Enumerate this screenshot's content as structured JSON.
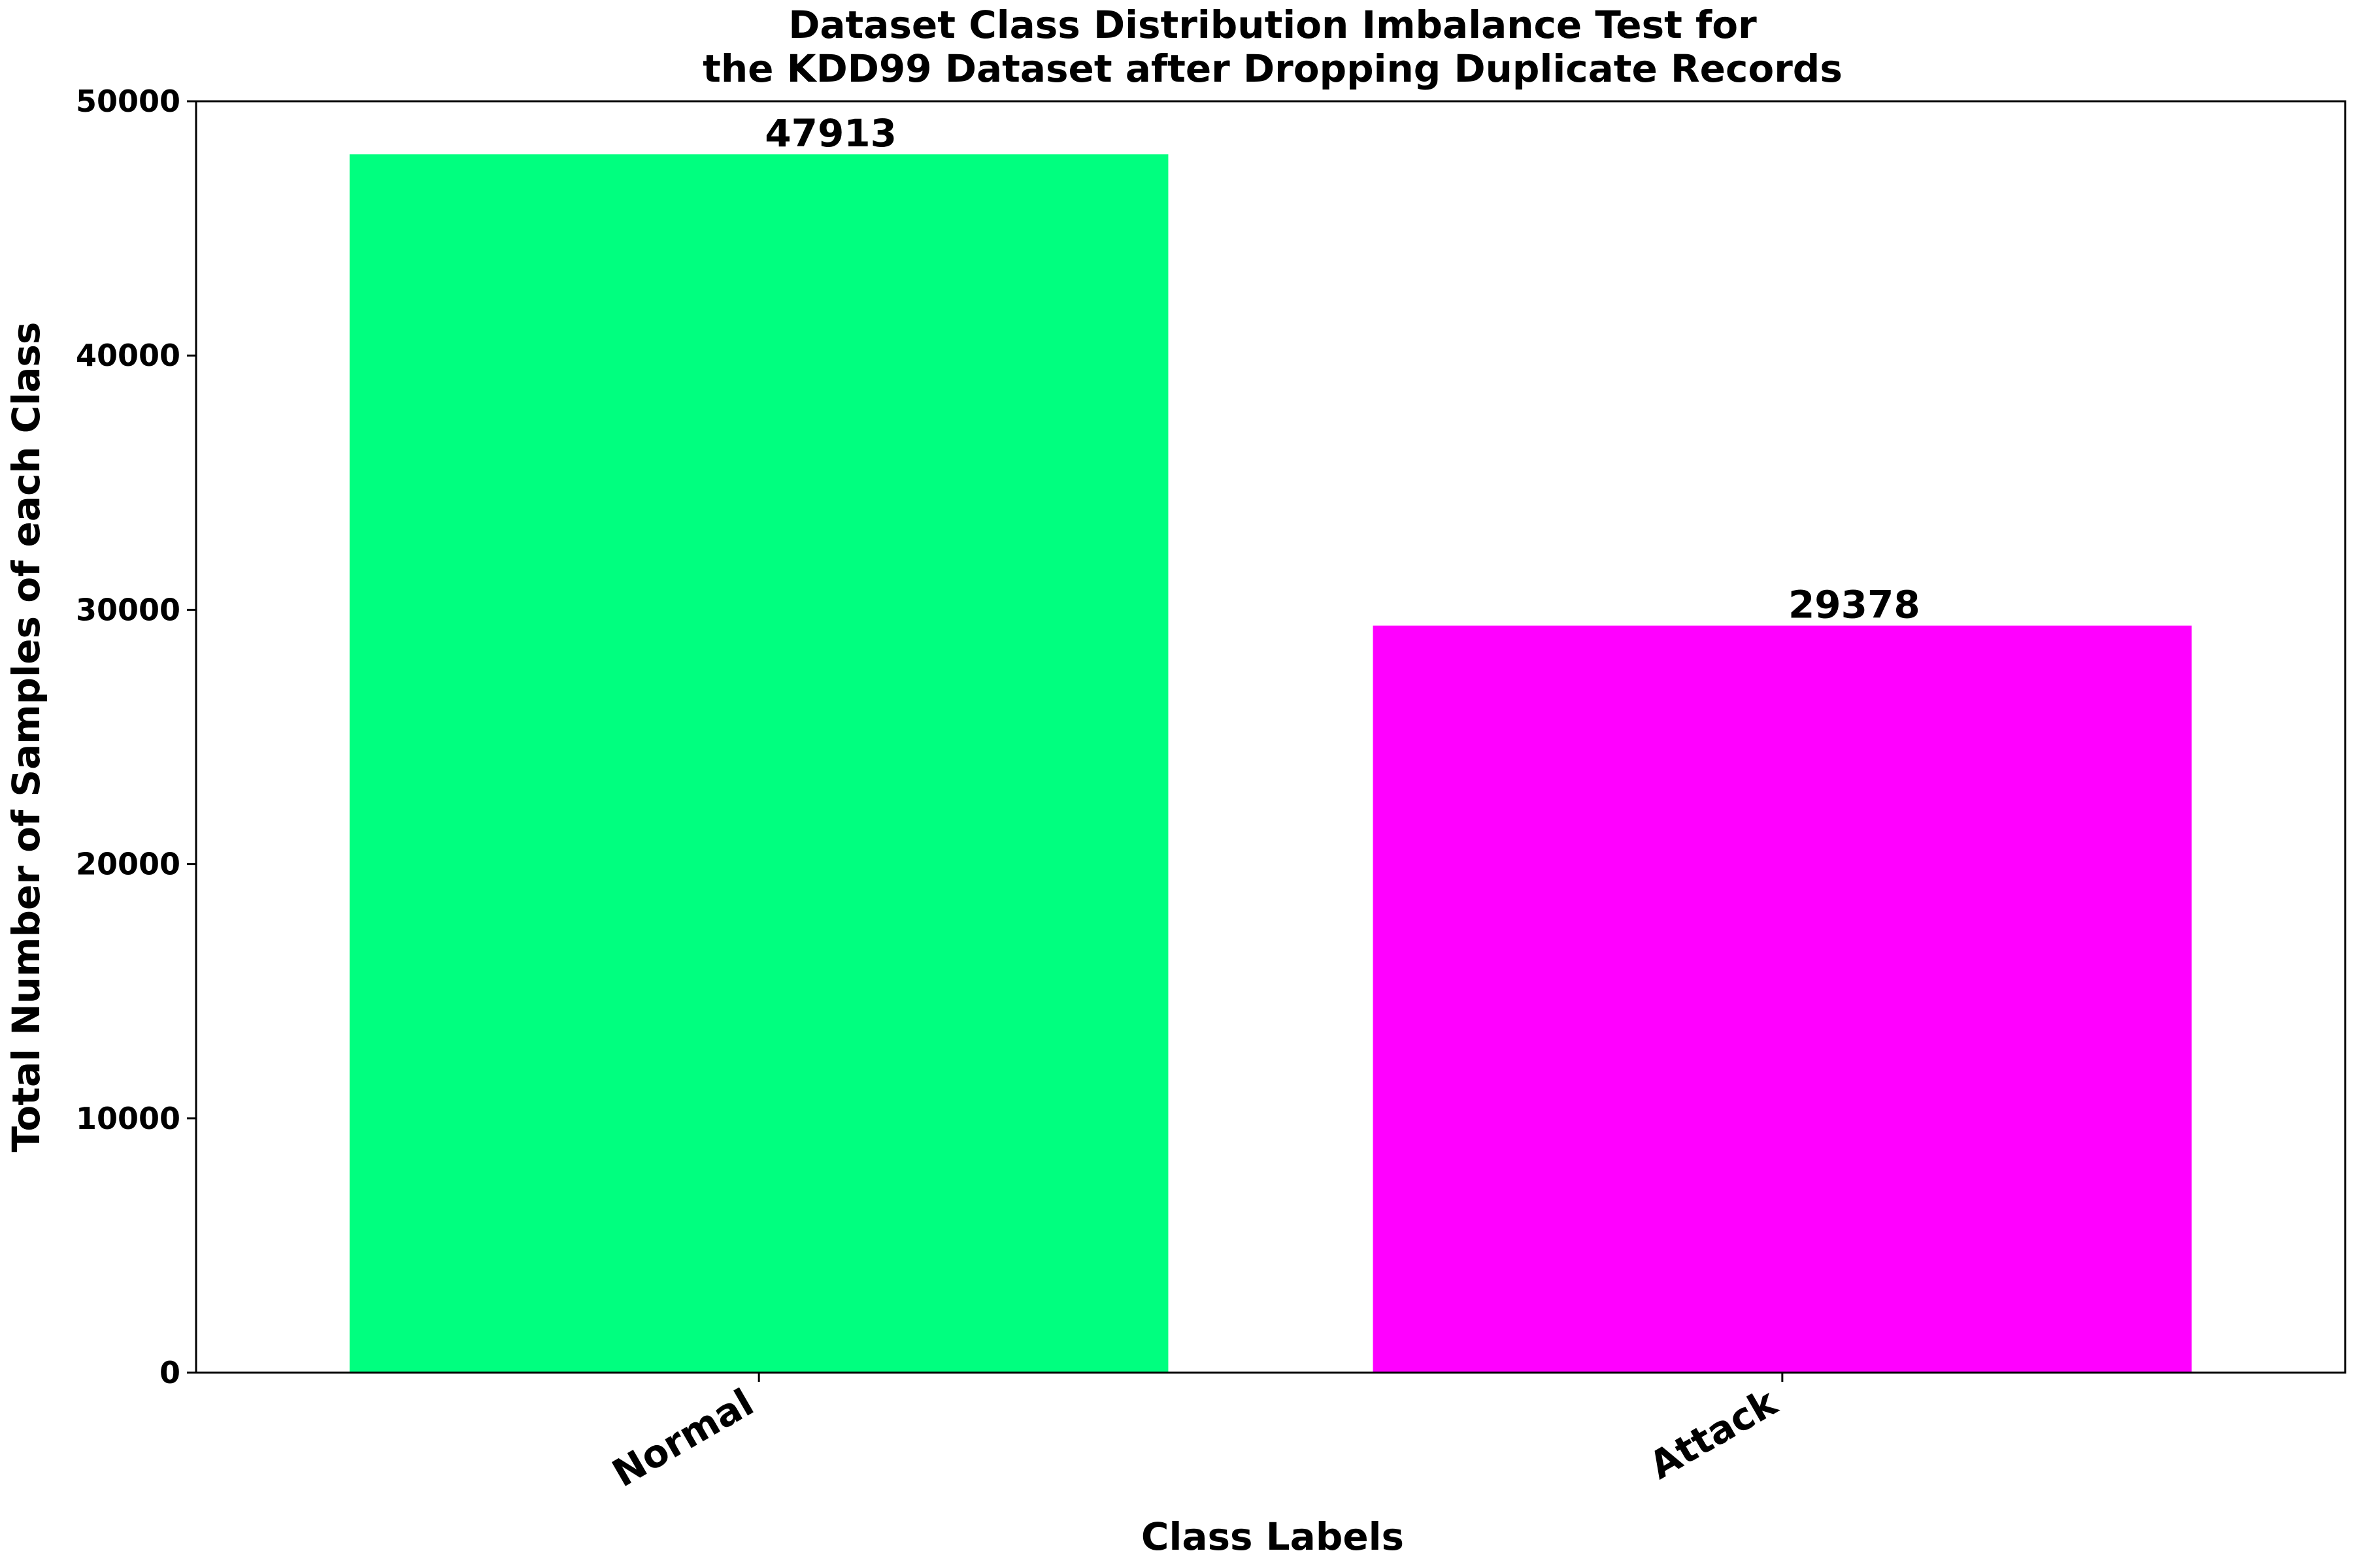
{
  "chart_data": {
    "type": "bar",
    "title_lines": [
      "Dataset Class Distribution Imbalance Test for",
      "the KDD99 Dataset after Dropping Duplicate Records"
    ],
    "xlabel": "Class Labels",
    "ylabel": "Total Number of Samples of each Class",
    "categories": [
      "Normal",
      "Attack"
    ],
    "values": [
      47913,
      29378
    ],
    "value_labels": [
      "47913",
      "29378"
    ],
    "colors": [
      "#00ff7f",
      "#ff00ff"
    ],
    "ylim": [
      0,
      50000
    ],
    "yticks": [
      0,
      10000,
      20000,
      30000,
      40000,
      50000
    ],
    "ytick_labels": [
      "0",
      "10000",
      "20000",
      "30000",
      "40000",
      "50000"
    ],
    "grid": false,
    "legend": "none"
  }
}
